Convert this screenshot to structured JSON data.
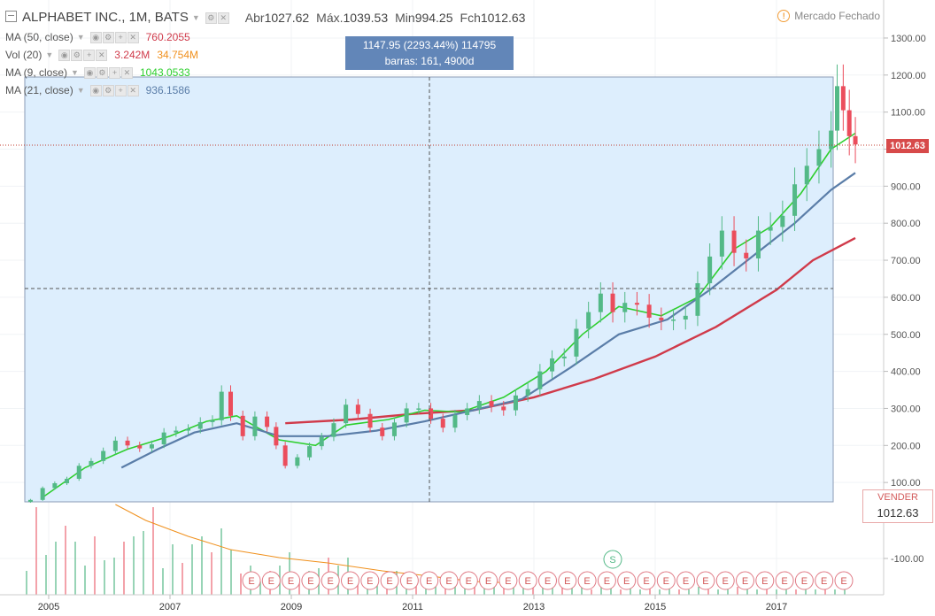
{
  "header": {
    "symbol": "ALPHABET INC., 1M, BATS",
    "ohlc": [
      {
        "key": "Abr",
        "val": "1027.62"
      },
      {
        "key": "Máx.",
        "val": "1039.53"
      },
      {
        "key": "Min",
        "val": "994.25"
      },
      {
        "key": "Fch",
        "val": "1012.63"
      }
    ],
    "market_status": "Mercado Fechado"
  },
  "indicators": [
    {
      "label": "MA (50, close)",
      "values": [
        {
          "text": "760.2055",
          "color": "#d03a4a"
        }
      ]
    },
    {
      "label": "Vol (20)",
      "values": [
        {
          "text": "3.242M",
          "color": "#d03a4a"
        },
        {
          "text": "34.754M",
          "color": "#f0901c"
        }
      ]
    },
    {
      "label": "MA (9, close)",
      "values": [
        {
          "text": "1043.0533",
          "color": "#2ecf2e"
        }
      ]
    },
    {
      "label": "MA (21, close)",
      "values": [
        {
          "text": "936.1586",
          "color": "#5a7da8"
        }
      ]
    }
  ],
  "measure_tooltip": {
    "line1": "1147.95 (2293.44%) 114795",
    "line2": "barras: 161, 4900d"
  },
  "last_price_tag": "1012.63",
  "sell_box": {
    "label": "VENDER",
    "price": "1012.63"
  },
  "colors": {
    "up": "#53b987",
    "down": "#eb4d5c",
    "ma50": "#d03a4a",
    "ma9": "#2ecf2e",
    "ma21": "#5a7da8",
    "vol_ma": "#f0901c",
    "selection": "#ddeefd",
    "accent": "#6286b8"
  },
  "chart_data": {
    "type": "candlestick",
    "title": "ALPHABET INC., 1M, BATS",
    "x_ticks": [
      "2005",
      "2007",
      "2009",
      "2011",
      "2013",
      "2015",
      "2017"
    ],
    "y_ticks": [
      "1300.00",
      "1200.00",
      "1100.00",
      "1000.00",
      "900.00",
      "800.00",
      "700.00",
      "600.00",
      "500.00",
      "400.00",
      "300.00",
      "200.00",
      "100.00",
      "-100.00"
    ],
    "y_range": [
      0,
      1300
    ],
    "closes": [
      [
        2004.7,
        53
      ],
      [
        2004.9,
        85
      ],
      [
        2005.1,
        98
      ],
      [
        2005.3,
        110
      ],
      [
        2005.5,
        145
      ],
      [
        2005.7,
        158
      ],
      [
        2005.9,
        185
      ],
      [
        2006.1,
        213
      ],
      [
        2006.3,
        200
      ],
      [
        2006.5,
        192
      ],
      [
        2006.7,
        203
      ],
      [
        2006.9,
        235
      ],
      [
        2007.1,
        240
      ],
      [
        2007.3,
        245
      ],
      [
        2007.5,
        263
      ],
      [
        2007.7,
        268
      ],
      [
        2007.85,
        345
      ],
      [
        2008.0,
        280
      ],
      [
        2008.2,
        225
      ],
      [
        2008.4,
        278
      ],
      [
        2008.6,
        250
      ],
      [
        2008.75,
        200
      ],
      [
        2008.9,
        145
      ],
      [
        2009.1,
        168
      ],
      [
        2009.3,
        198
      ],
      [
        2009.5,
        223
      ],
      [
        2009.7,
        260
      ],
      [
        2009.9,
        310
      ],
      [
        2010.1,
        285
      ],
      [
        2010.3,
        248
      ],
      [
        2010.5,
        225
      ],
      [
        2010.7,
        262
      ],
      [
        2010.9,
        300
      ],
      [
        2011.1,
        300
      ],
      [
        2011.3,
        272
      ],
      [
        2011.5,
        248
      ],
      [
        2011.7,
        282
      ],
      [
        2011.9,
        300
      ],
      [
        2012.1,
        320
      ],
      [
        2012.3,
        305
      ],
      [
        2012.5,
        295
      ],
      [
        2012.7,
        335
      ],
      [
        2012.9,
        352
      ],
      [
        2013.1,
        400
      ],
      [
        2013.3,
        435
      ],
      [
        2013.5,
        440
      ],
      [
        2013.7,
        515
      ],
      [
        2013.9,
        560
      ],
      [
        2014.1,
        610
      ],
      [
        2014.3,
        560
      ],
      [
        2014.5,
        585
      ],
      [
        2014.7,
        580
      ],
      [
        2014.9,
        545
      ],
      [
        2015.1,
        538
      ],
      [
        2015.3,
        540
      ],
      [
        2015.5,
        550
      ],
      [
        2015.7,
        638
      ],
      [
        2015.9,
        710
      ],
      [
        2016.1,
        780
      ],
      [
        2016.3,
        720
      ],
      [
        2016.5,
        705
      ],
      [
        2016.7,
        780
      ],
      [
        2016.9,
        790
      ],
      [
        2017.1,
        820
      ],
      [
        2017.3,
        905
      ],
      [
        2017.5,
        955
      ],
      [
        2017.7,
        1000
      ],
      [
        2017.9,
        1050
      ],
      [
        2018.0,
        1170
      ],
      [
        2018.1,
        1105
      ],
      [
        2018.2,
        1035
      ],
      [
        2018.3,
        1012.63
      ]
    ],
    "series": [
      {
        "name": "MA (50, close)",
        "points": [
          [
            2008.9,
            260
          ],
          [
            2010.0,
            270
          ],
          [
            2011.0,
            285
          ],
          [
            2012.0,
            295
          ],
          [
            2013.0,
            330
          ],
          [
            2014.0,
            380
          ],
          [
            2015.0,
            440
          ],
          [
            2016.0,
            520
          ],
          [
            2017.0,
            620
          ],
          [
            2017.6,
            700
          ],
          [
            2018.3,
            760
          ]
        ]
      },
      {
        "name": "MA (9, close)",
        "points": [
          [
            2004.9,
            60
          ],
          [
            2005.6,
            140
          ],
          [
            2006.3,
            190
          ],
          [
            2007.0,
            225
          ],
          [
            2007.6,
            265
          ],
          [
            2008.1,
            280
          ],
          [
            2008.8,
            215
          ],
          [
            2009.4,
            200
          ],
          [
            2009.9,
            255
          ],
          [
            2010.6,
            270
          ],
          [
            2011.2,
            295
          ],
          [
            2011.8,
            290
          ],
          [
            2012.5,
            330
          ],
          [
            2013.2,
            400
          ],
          [
            2013.8,
            500
          ],
          [
            2014.4,
            575
          ],
          [
            2015.1,
            550
          ],
          [
            2015.7,
            600
          ],
          [
            2016.3,
            730
          ],
          [
            2016.9,
            790
          ],
          [
            2017.4,
            880
          ],
          [
            2017.9,
            1000
          ],
          [
            2018.3,
            1043
          ]
        ]
      },
      {
        "name": "MA (21, close)",
        "points": [
          [
            2006.2,
            140
          ],
          [
            2006.8,
            190
          ],
          [
            2007.4,
            235
          ],
          [
            2008.1,
            260
          ],
          [
            2008.8,
            225
          ],
          [
            2009.6,
            225
          ],
          [
            2010.4,
            240
          ],
          [
            2011.2,
            265
          ],
          [
            2012.0,
            295
          ],
          [
            2012.8,
            325
          ],
          [
            2013.6,
            410
          ],
          [
            2014.4,
            500
          ],
          [
            2015.2,
            540
          ],
          [
            2015.9,
            620
          ],
          [
            2016.6,
            710
          ],
          [
            2017.3,
            800
          ],
          [
            2017.9,
            890
          ],
          [
            2018.3,
            936
          ]
        ]
      }
    ],
    "volume": [
      9,
      33,
      15,
      20,
      26,
      20,
      11,
      22,
      13,
      14,
      20,
      22,
      24,
      33,
      10,
      19,
      12,
      19,
      22,
      16,
      25,
      17,
      8,
      11,
      5,
      9,
      11,
      16,
      5,
      9,
      10,
      14,
      11,
      14,
      4,
      6,
      5,
      6,
      9,
      6,
      6,
      4,
      4,
      5,
      4,
      4,
      3,
      4,
      3,
      5,
      3,
      4,
      3,
      3,
      3,
      4,
      3,
      3,
      2,
      3,
      3,
      2,
      3,
      2,
      3,
      2,
      3,
      2,
      2,
      3,
      2,
      2,
      2,
      3,
      2,
      2,
      2,
      2,
      2,
      2,
      2,
      2,
      2,
      2,
      3
    ],
    "vol_ma": [
      [
        2006.1,
        34
      ],
      [
        2006.6,
        28
      ],
      [
        2007.3,
        22
      ],
      [
        2008.0,
        17
      ],
      [
        2008.8,
        14
      ],
      [
        2009.6,
        12
      ],
      [
        2010.5,
        9
      ],
      [
        2011.3,
        7
      ],
      [
        2012.0,
        5
      ],
      [
        2012.6,
        4.5
      ]
    ],
    "dividend_label": "S",
    "earnings_label": "E"
  }
}
